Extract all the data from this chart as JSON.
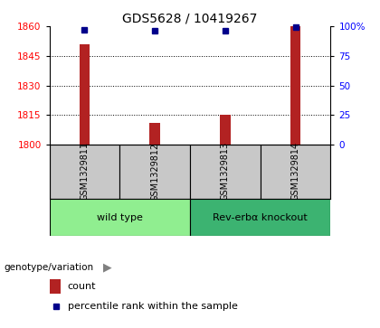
{
  "title": "GDS5628 / 10419267",
  "samples": [
    "GSM1329811",
    "GSM1329812",
    "GSM1329813",
    "GSM1329814"
  ],
  "counts": [
    1851,
    1811,
    1815,
    1860
  ],
  "percentiles": [
    97,
    96,
    96,
    99
  ],
  "ylim_left": [
    1800,
    1860
  ],
  "ylim_right": [
    0,
    100
  ],
  "yticks_left": [
    1800,
    1815,
    1830,
    1845,
    1860
  ],
  "yticks_right": [
    0,
    25,
    50,
    75,
    100
  ],
  "ytick_labels_right": [
    "0",
    "25",
    "50",
    "75",
    "100%"
  ],
  "groups": [
    {
      "label": "wild type",
      "indices": [
        0,
        1
      ],
      "color": "#90EE90"
    },
    {
      "label": "Rev-erbα knockout",
      "indices": [
        2,
        3
      ],
      "color": "#3CB371"
    }
  ],
  "bar_color": "#B22222",
  "dot_color": "#00008B",
  "grid_color": "#000000",
  "bg_color": "#FFFFFF",
  "sample_box_color": "#C8C8C8",
  "title_fontsize": 10,
  "tick_fontsize": 7.5,
  "sample_fontsize": 7,
  "group_fontsize": 8,
  "legend_fontsize": 8,
  "legend_items": [
    "count",
    "percentile rank within the sample"
  ],
  "bar_width": 0.15,
  "n_samples": 4
}
